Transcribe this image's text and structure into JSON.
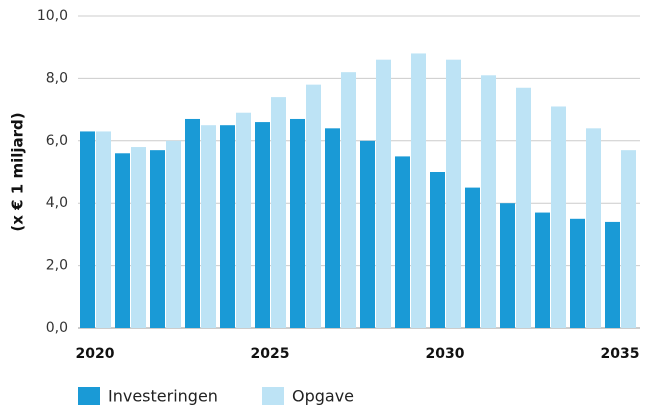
{
  "chart_data": {
    "type": "bar",
    "y_label": "(x € 1 miljard)",
    "categories": [
      "2020",
      null,
      null,
      null,
      null,
      "2025",
      null,
      null,
      null,
      null,
      "2030",
      null,
      null,
      null,
      null,
      "2035"
    ],
    "series": [
      {
        "name": "Investeringen",
        "color": "#1a9ad6",
        "values": [
          6.3,
          5.6,
          5.7,
          6.7,
          6.5,
          6.6,
          6.7,
          6.4,
          6.0,
          5.5,
          5.0,
          4.5,
          4.0,
          3.7,
          3.5,
          3.4
        ]
      },
      {
        "name": "Opgave",
        "color": "#bde3f5",
        "values": [
          6.3,
          5.8,
          6.0,
          6.5,
          6.9,
          7.4,
          7.8,
          8.2,
          8.6,
          8.8,
          8.6,
          8.1,
          7.7,
          7.1,
          6.4,
          5.7
        ]
      }
    ],
    "ylim": [
      0,
      10
    ],
    "yticks": [
      {
        "value": 0,
        "label": "0,0"
      },
      {
        "value": 2,
        "label": "2,0"
      },
      {
        "value": 4,
        "label": "4,0"
      },
      {
        "value": 6,
        "label": "6,0"
      },
      {
        "value": 8,
        "label": "8,0"
      },
      {
        "value": 10,
        "label": "10,0"
      }
    ],
    "grid": true
  }
}
